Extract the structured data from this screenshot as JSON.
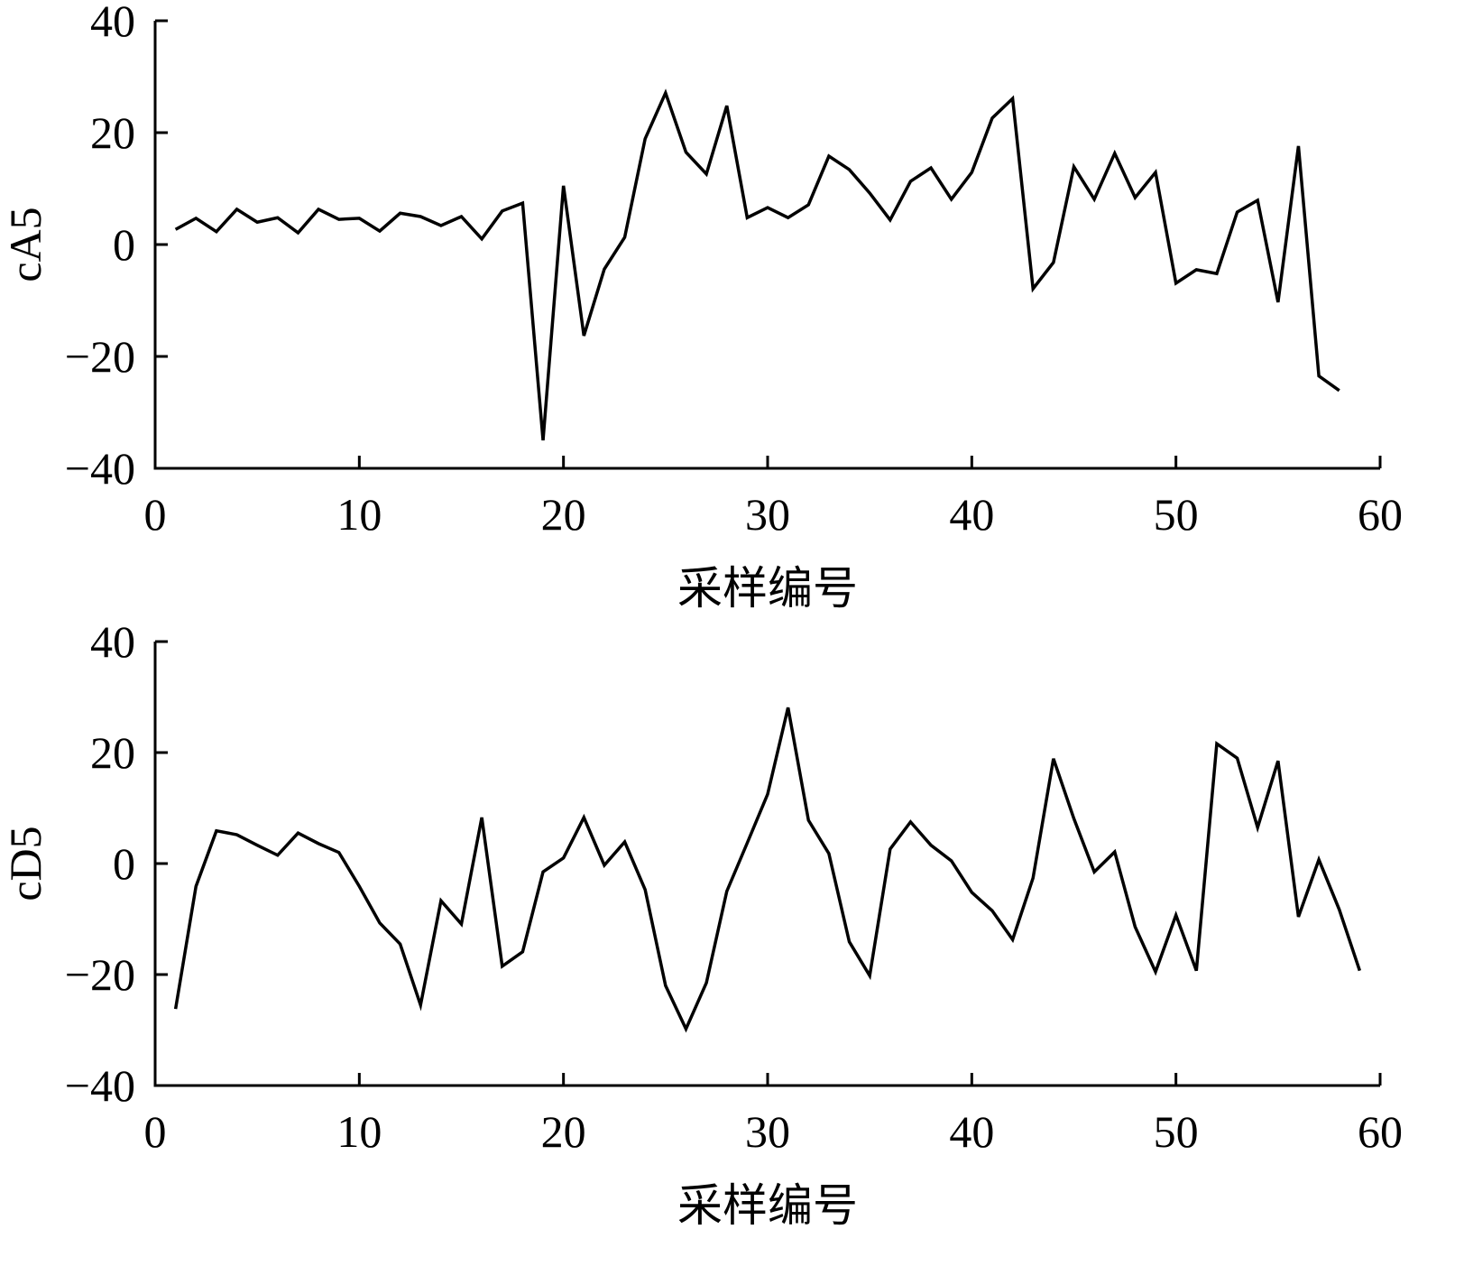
{
  "chart_data": [
    {
      "type": "line",
      "x_label": "采样编号",
      "y_label": "cA5",
      "x": [
        1,
        2,
        3,
        4,
        5,
        6,
        7,
        8,
        9,
        10,
        11,
        12,
        13,
        14,
        15,
        16,
        17,
        18,
        19,
        20,
        21,
        22,
        23,
        24,
        25,
        26,
        27,
        28,
        29,
        30,
        31,
        32,
        33,
        34,
        35,
        36,
        37,
        38,
        39,
        40,
        41,
        42,
        43,
        44,
        45,
        46,
        47,
        48,
        49,
        50,
        51,
        52,
        53,
        54,
        55,
        56,
        57,
        58
      ],
      "series": [
        {
          "color": "#000000",
          "values": [
            2.7,
            4.7,
            2.3,
            6.3,
            4,
            4.8,
            2.1,
            6.3,
            4.5,
            4.7,
            2.4,
            5.6,
            5,
            3.4,
            5,
            1,
            6,
            7.4,
            -35,
            10.5,
            -16.3,
            -4.4,
            1.3,
            18.9,
            27.1,
            16.5,
            12.6,
            24.8,
            4.8,
            6.6,
            4.8,
            7.1,
            15.8,
            13.4,
            9.2,
            4.4,
            11.3,
            13.7,
            8.1,
            12.9,
            22.6,
            26.1,
            -7.9,
            -3.2,
            13.9,
            8.1,
            16.3,
            8.4,
            12.9,
            -6.9,
            -4.5,
            -5.2,
            5.8,
            7.9,
            -10.3,
            17.6,
            -23.5,
            -26.1
          ]
        }
      ],
      "xlim": [
        0,
        60
      ],
      "xticks": [
        0,
        10,
        20,
        30,
        40,
        50,
        60
      ],
      "ylim": [
        -40,
        40
      ],
      "yticks": [
        {
          "value": -40,
          "label": "−40"
        },
        {
          "value": -20,
          "label": "−20"
        },
        0,
        20,
        40
      ]
    },
    {
      "type": "line",
      "x_label": "采样编号",
      "y_label": "cD5",
      "x": [
        1,
        2,
        3,
        4,
        5,
        6,
        7,
        8,
        9,
        10,
        11,
        12,
        13,
        14,
        15,
        16,
        17,
        18,
        19,
        20,
        21,
        22,
        23,
        24,
        25,
        26,
        27,
        28,
        29,
        30,
        31,
        32,
        33,
        34,
        35,
        36,
        37,
        38,
        39,
        40,
        41,
        42,
        43,
        44,
        45,
        46,
        47,
        48,
        49,
        50,
        51,
        52,
        53,
        54,
        55,
        56,
        57,
        58,
        59
      ],
      "series": [
        {
          "color": "#000000",
          "values": [
            -26.2,
            -4.1,
            5.9,
            5.2,
            3.3,
            1.5,
            5.5,
            3.6,
            2,
            -4.1,
            -10.7,
            -14.5,
            -25.5,
            -6.7,
            -10.9,
            8.3,
            -18.5,
            -15.9,
            -1.5,
            1,
            8.3,
            -0.3,
            3.9,
            -4.7,
            -22,
            -29.8,
            -21.5,
            -5,
            3.7,
            12.5,
            28.1,
            7.8,
            1.8,
            -14.1,
            -20.2,
            2.6,
            7.5,
            3.3,
            0.5,
            -5.2,
            -8.5,
            -13.7,
            -2.6,
            18.9,
            8.1,
            -1.5,
            2.1,
            -11.4,
            -19.5,
            -9.3,
            -19.3,
            21.6,
            19,
            6.5,
            18.5,
            -9.6,
            0.7,
            -8.3,
            -19.3
          ]
        }
      ],
      "xlim": [
        0,
        60
      ],
      "xticks": [
        0,
        10,
        20,
        30,
        40,
        50,
        60
      ],
      "ylim": [
        -40,
        40
      ],
      "yticks": [
        {
          "value": -40,
          "label": "−40"
        },
        {
          "value": -20,
          "label": "−20"
        },
        0,
        20,
        40
      ]
    }
  ]
}
